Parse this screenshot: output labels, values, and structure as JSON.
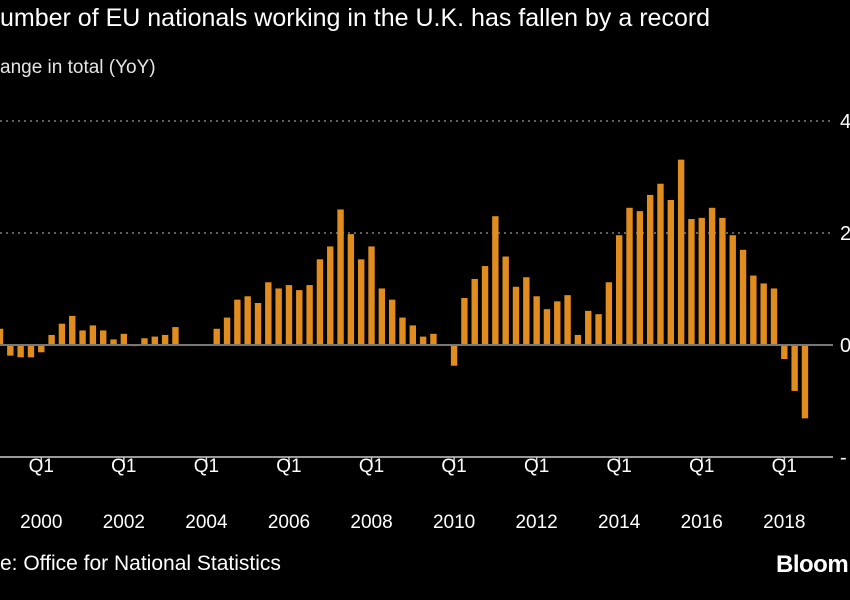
{
  "title": "umber of EU nationals working in the U.K. has fallen by a record",
  "subtitle": "ange in total (YoY)",
  "source": "e: Office for National Statistics",
  "logo": "Bloom",
  "colors": {
    "bar": "#e08c1e",
    "background": "#000000",
    "grid": "#808080"
  },
  "chart_data": {
    "type": "bar",
    "title": "umber of EU nationals working in the U.K. has fallen by a record",
    "subtitle": "ange in total (YoY)",
    "x_start": "1999 Q1",
    "x_end": "2018 Q3",
    "frequency": "quarterly",
    "ylim": [
      -200,
      400
    ],
    "yticks": [
      {
        "value": 400,
        "label": "4"
      },
      {
        "value": 200,
        "label": "2"
      },
      {
        "value": 0,
        "label": "0"
      },
      {
        "value": -200,
        "label": "-"
      }
    ],
    "grid": true,
    "xticks": [
      {
        "q": "Q1",
        "year": "2000",
        "index": 4
      },
      {
        "q": "Q1",
        "year": "2002",
        "index": 12
      },
      {
        "q": "Q1",
        "year": "2004",
        "index": 20
      },
      {
        "q": "Q1",
        "year": "2006",
        "index": 28
      },
      {
        "q": "Q1",
        "year": "2008",
        "index": 36
      },
      {
        "q": "Q1",
        "year": "2010",
        "index": 44
      },
      {
        "q": "Q1",
        "year": "2012",
        "index": 52
      },
      {
        "q": "Q1",
        "year": "2014",
        "index": 60
      },
      {
        "q": "Q1",
        "year": "2016",
        "index": 68
      },
      {
        "q": "Q1",
        "year": "2018",
        "index": 76
      }
    ],
    "values": [
      29,
      -19,
      -22,
      -22,
      -13,
      18,
      38,
      52,
      26,
      35,
      26,
      10,
      20,
      -2,
      12,
      15,
      18,
      32,
      -1,
      1,
      1,
      29,
      49,
      81,
      87,
      75,
      112,
      101,
      107,
      98,
      107,
      153,
      176,
      242,
      198,
      153,
      176,
      101,
      81,
      49,
      35,
      15,
      20,
      -1,
      -37,
      84,
      118,
      141,
      230,
      158,
      104,
      121,
      87,
      64,
      78,
      89,
      18,
      61,
      55,
      112,
      196,
      245,
      239,
      268,
      288,
      259,
      331,
      225,
      227,
      245,
      227,
      196,
      170,
      124,
      110,
      101,
      -25,
      -82,
      -131
    ]
  }
}
